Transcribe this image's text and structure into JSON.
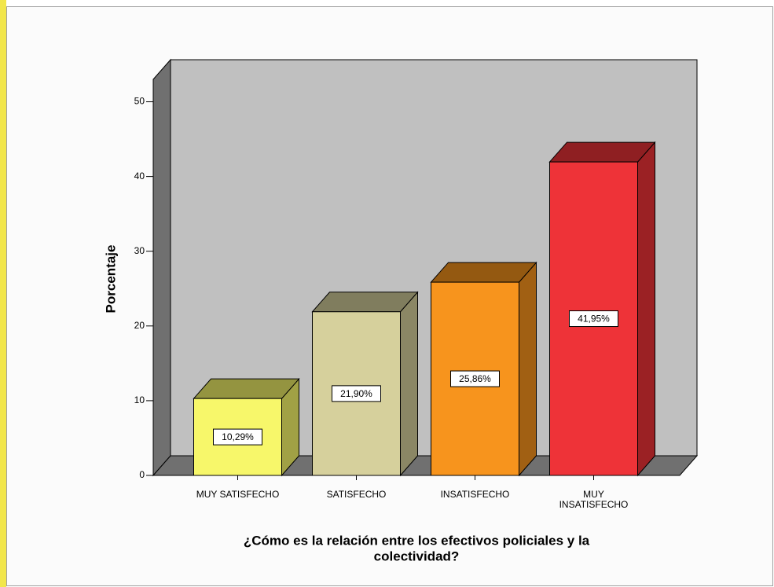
{
  "chart_data": {
    "type": "bar3d",
    "ylabel": "Porcentaje",
    "xlabel_lines": [
      "¿Cómo es la relación entre los efectivos policiales y la",
      "colectividad?"
    ],
    "categories": [
      "MUY SATISFECHO",
      "SATISFECHO",
      "INSATISFECHO",
      "MUY INSATISFECHO"
    ],
    "values": [
      10.29,
      21.9,
      25.86,
      41.95
    ],
    "value_labels": [
      "10,29%",
      "21,90%",
      "25,86%",
      "41,95%"
    ],
    "colors": [
      "#f7f76a",
      "#d6d09c",
      "#f7941d",
      "#ee3338"
    ],
    "ylim": [
      0,
      53
    ],
    "yticks": [
      0,
      10,
      20,
      30,
      40,
      50
    ]
  }
}
